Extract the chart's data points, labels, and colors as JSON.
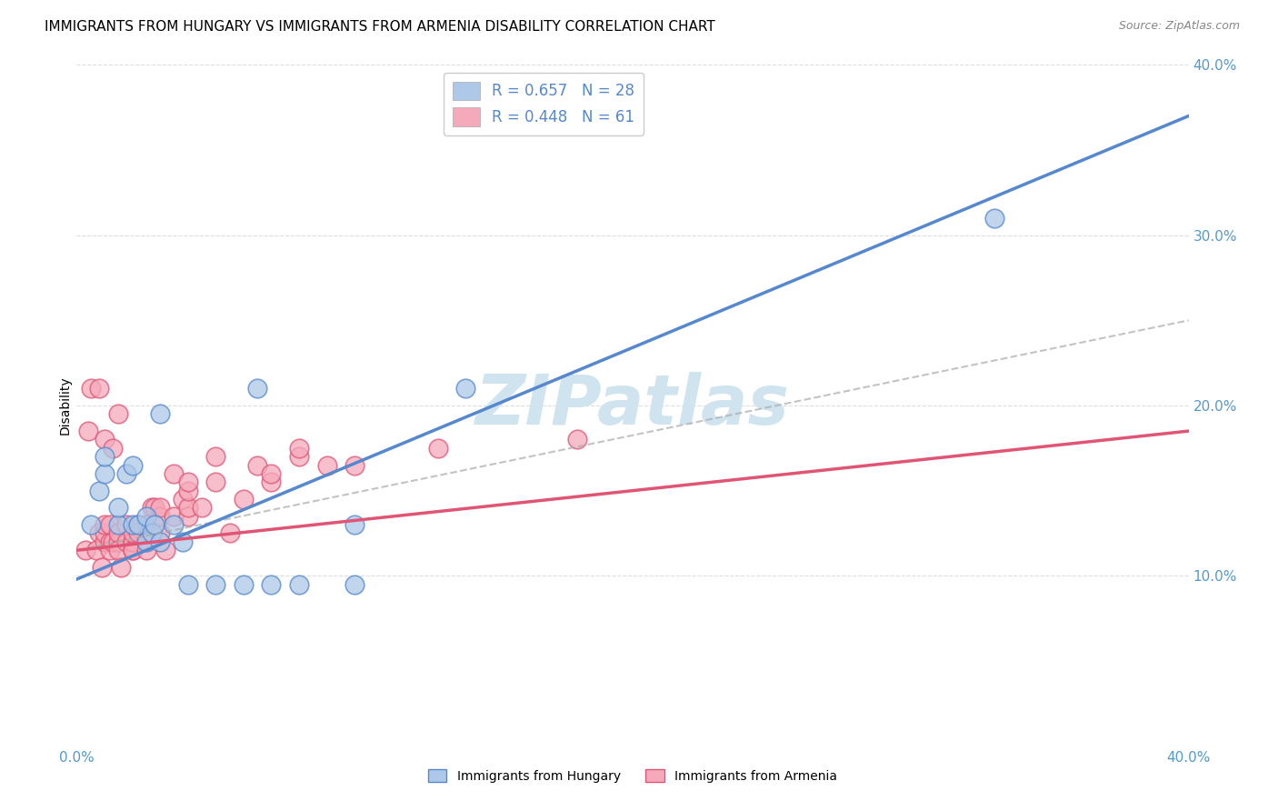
{
  "title": "IMMIGRANTS FROM HUNGARY VS IMMIGRANTS FROM ARMENIA DISABILITY CORRELATION CHART",
  "source": "Source: ZipAtlas.com",
  "ylabel": "Disability",
  "xlim": [
    0.0,
    0.4
  ],
  "ylim": [
    0.0,
    0.4
  ],
  "hungary_color": "#adc8e8",
  "armenia_color": "#f5aabb",
  "hungary_line_color": "#5588cc",
  "armenia_line_color": "#e05575",
  "hungary_R": 0.657,
  "hungary_N": 28,
  "armenia_R": 0.448,
  "armenia_N": 61,
  "hungary_scatter_x": [
    0.005,
    0.008,
    0.01,
    0.01,
    0.015,
    0.015,
    0.018,
    0.02,
    0.02,
    0.022,
    0.025,
    0.025,
    0.027,
    0.028,
    0.03,
    0.03,
    0.035,
    0.038,
    0.04,
    0.05,
    0.06,
    0.065,
    0.07,
    0.08,
    0.1,
    0.1,
    0.14,
    0.33
  ],
  "hungary_scatter_y": [
    0.13,
    0.15,
    0.16,
    0.17,
    0.13,
    0.14,
    0.16,
    0.13,
    0.165,
    0.13,
    0.12,
    0.135,
    0.125,
    0.13,
    0.12,
    0.195,
    0.13,
    0.12,
    0.095,
    0.095,
    0.095,
    0.21,
    0.095,
    0.095,
    0.13,
    0.095,
    0.21,
    0.31
  ],
  "armenia_scatter_x": [
    0.003,
    0.004,
    0.005,
    0.007,
    0.008,
    0.008,
    0.009,
    0.01,
    0.01,
    0.01,
    0.01,
    0.012,
    0.012,
    0.012,
    0.013,
    0.013,
    0.015,
    0.015,
    0.015,
    0.015,
    0.016,
    0.018,
    0.018,
    0.02,
    0.02,
    0.02,
    0.02,
    0.02,
    0.022,
    0.022,
    0.025,
    0.025,
    0.025,
    0.025,
    0.027,
    0.028,
    0.03,
    0.03,
    0.03,
    0.032,
    0.035,
    0.035,
    0.038,
    0.04,
    0.04,
    0.04,
    0.04,
    0.045,
    0.05,
    0.05,
    0.055,
    0.06,
    0.065,
    0.07,
    0.07,
    0.08,
    0.08,
    0.09,
    0.1,
    0.13,
    0.18
  ],
  "armenia_scatter_y": [
    0.115,
    0.185,
    0.21,
    0.115,
    0.21,
    0.125,
    0.105,
    0.12,
    0.125,
    0.13,
    0.18,
    0.12,
    0.115,
    0.13,
    0.12,
    0.175,
    0.12,
    0.125,
    0.115,
    0.195,
    0.105,
    0.12,
    0.13,
    0.115,
    0.12,
    0.12,
    0.115,
    0.125,
    0.13,
    0.125,
    0.12,
    0.13,
    0.13,
    0.115,
    0.14,
    0.14,
    0.125,
    0.135,
    0.14,
    0.115,
    0.135,
    0.16,
    0.145,
    0.135,
    0.14,
    0.15,
    0.155,
    0.14,
    0.155,
    0.17,
    0.125,
    0.145,
    0.165,
    0.155,
    0.16,
    0.17,
    0.175,
    0.165,
    0.165,
    0.175,
    0.18
  ],
  "background_color": "#ffffff",
  "grid_color": "#dddddd",
  "watermark_color": "#d0e4f0",
  "tick_color": "#5599cc",
  "tick_fontsize": 11,
  "legend_fontsize": 12,
  "axis_label_fontsize": 10,
  "title_fontsize": 11,
  "source_fontsize": 9,
  "hungary_line_start_y": 0.098,
  "hungary_line_end_y": 0.37,
  "armenia_line_start_y": 0.115,
  "armenia_line_end_y": 0.185,
  "gray_dash_line_start_y": 0.115,
  "gray_dash_line_end_y": 0.25
}
